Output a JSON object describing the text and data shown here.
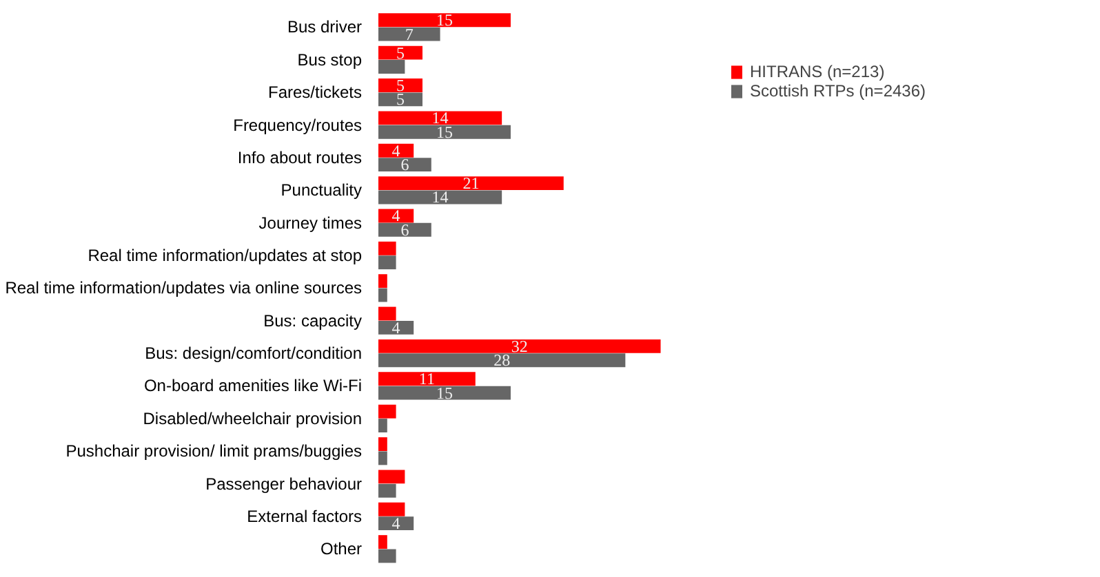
{
  "chart_data": {
    "type": "bar",
    "orientation": "horizontal",
    "categories": [
      "Bus driver",
      "Bus stop",
      "Fares/tickets",
      "Frequency/routes",
      "Info about routes",
      "Punctuality",
      "Journey times",
      "Real time information/updates at stop",
      "Real time information/updates via online sources",
      "Bus: capacity",
      "Bus: design/comfort/condition",
      "On-board amenities like Wi-Fi",
      "Disabled/wheelchair provision",
      "Pushchair provision/ limit prams/buggies",
      "Passenger behaviour",
      "External factors",
      "Other"
    ],
    "series": [
      {
        "name": "HITRANS (n=213)",
        "color": "#ff0000",
        "values": [
          15,
          5,
          5,
          14,
          4,
          21,
          4,
          2,
          1,
          2,
          32,
          11,
          2,
          1,
          3,
          3,
          1
        ],
        "value_labels": [
          "15",
          "5",
          "5",
          "14",
          "4",
          "21",
          "4",
          null,
          null,
          null,
          "32",
          "11",
          null,
          null,
          null,
          null,
          null
        ]
      },
      {
        "name": "Scottish RTPs (n=2436)",
        "color": "#666666",
        "values": [
          7,
          3,
          5,
          15,
          6,
          14,
          6,
          2,
          1,
          4,
          28,
          15,
          1,
          1,
          2,
          4,
          2
        ],
        "value_labels": [
          "7",
          null,
          "5",
          "15",
          "6",
          "14",
          "6",
          null,
          null,
          "4",
          "28",
          "15",
          null,
          null,
          null,
          "4",
          null
        ]
      }
    ],
    "legend": "top right",
    "grid": false,
    "tick_labels": "y"
  }
}
